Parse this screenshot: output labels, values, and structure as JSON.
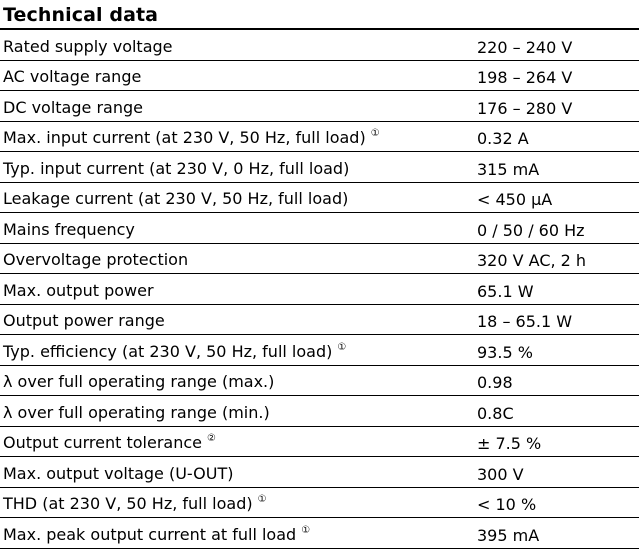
{
  "title": "Technical data",
  "rows": [
    {
      "label": "Rated supply voltage",
      "note": "",
      "value": "220 – 240 V"
    },
    {
      "label": "AC voltage range",
      "note": "",
      "value": "198 – 264 V"
    },
    {
      "label": "DC voltage range",
      "note": "",
      "value": "176 – 280 V"
    },
    {
      "label": "Max. input current (at 230 V, 50 Hz, full load)",
      "note": "①",
      "value": "0.32 A"
    },
    {
      "label": "Typ. input current (at 230 V, 0 Hz, full load)",
      "note": "",
      "value": "315 mA"
    },
    {
      "label": "Leakage current (at 230 V, 50 Hz, full load)",
      "note": "",
      "value": "< 450 µA"
    },
    {
      "label": "Mains frequency",
      "note": "",
      "value": "0 / 50 / 60 Hz"
    },
    {
      "label": "Overvoltage protection",
      "note": "",
      "value": "320 V AC, 2 h"
    },
    {
      "label": "Max. output power",
      "note": "",
      "value": "65.1 W"
    },
    {
      "label": "Output power range",
      "note": "",
      "value": "18 – 65.1 W"
    },
    {
      "label": "Typ. efficiency (at 230 V, 50 Hz, full load)",
      "note": "①",
      "value": "93.5 %"
    },
    {
      "label": "λ over full operating range (max.)",
      "note": "",
      "value": "0.98"
    },
    {
      "label": "λ over full operating range (min.)",
      "note": "",
      "value": "0.8C"
    },
    {
      "label": "Output current tolerance",
      "note": "②",
      "value": "± 7.5 %"
    },
    {
      "label": "Max. output voltage (U-OUT)",
      "note": "",
      "value": "300 V"
    },
    {
      "label": "THD (at 230 V, 50 Hz, full load)",
      "note": "①",
      "value": "< 10 %"
    },
    {
      "label": "Max. peak output current at full load",
      "note": "①",
      "value": "395 mA"
    }
  ]
}
